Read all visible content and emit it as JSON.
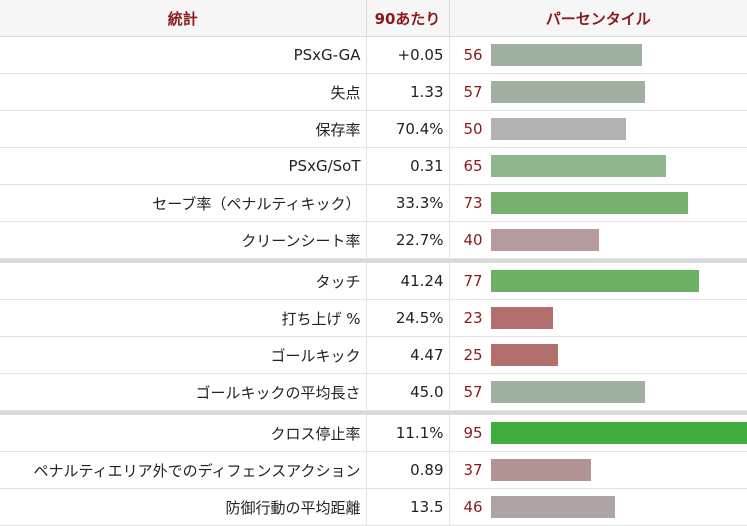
{
  "header": {
    "stat_label": "統計",
    "per90_label": "90あたり",
    "percentile_label": "パーセンタイル"
  },
  "groups": [
    {
      "rows": [
        {
          "stat": "PSxG-GA",
          "per90": "+0.05",
          "percentile": "56",
          "pct_value": 56,
          "color": "#9fb09e"
        },
        {
          "stat": "失点",
          "per90": "1.33",
          "percentile": "57",
          "pct_value": 57,
          "color": "#9fb09e"
        },
        {
          "stat": "保存率",
          "per90": "70.4%",
          "percentile": "50",
          "pct_value": 50,
          "color": "#b3b1b1"
        },
        {
          "stat": "PSxG/SoT",
          "per90": "0.31",
          "percentile": "65",
          "pct_value": 65,
          "color": "#8fb68c"
        },
        {
          "stat": "セーブ率（ペナルティキック）",
          "per90": "33.3%",
          "percentile": "73",
          "pct_value": 73,
          "color": "#78b070"
        },
        {
          "stat": "クリーンシート率",
          "per90": "22.7%",
          "percentile": "40",
          "pct_value": 40,
          "color": "#b39c9c"
        }
      ]
    },
    {
      "rows": [
        {
          "stat": "タッチ",
          "per90": "41.24",
          "percentile": "77",
          "pct_value": 77,
          "color": "#6cb064"
        },
        {
          "stat": "打ち上げ %",
          "per90": "24.5%",
          "percentile": "23",
          "pct_value": 23,
          "color": "#b36e6e"
        },
        {
          "stat": "ゴールキック",
          "per90": "4.47",
          "percentile": "25",
          "pct_value": 25,
          "color": "#b36e6e"
        },
        {
          "stat": "ゴールキックの平均長さ",
          "per90": "45.0",
          "percentile": "57",
          "pct_value": 57,
          "color": "#9fb09e"
        }
      ]
    },
    {
      "rows": [
        {
          "stat": "クロス停止率",
          "per90": "11.1%",
          "percentile": "95",
          "pct_value": 95,
          "color": "#3fae3f"
        },
        {
          "stat": "ペナルティエリア外でのディフェンスアクション",
          "per90": "0.89",
          "percentile": "37",
          "pct_value": 37,
          "color": "#b39494"
        },
        {
          "stat": "防御行動の平均距離",
          "per90": "13.5",
          "percentile": "46",
          "pct_value": 46,
          "color": "#b0a3a3"
        }
      ]
    }
  ]
}
